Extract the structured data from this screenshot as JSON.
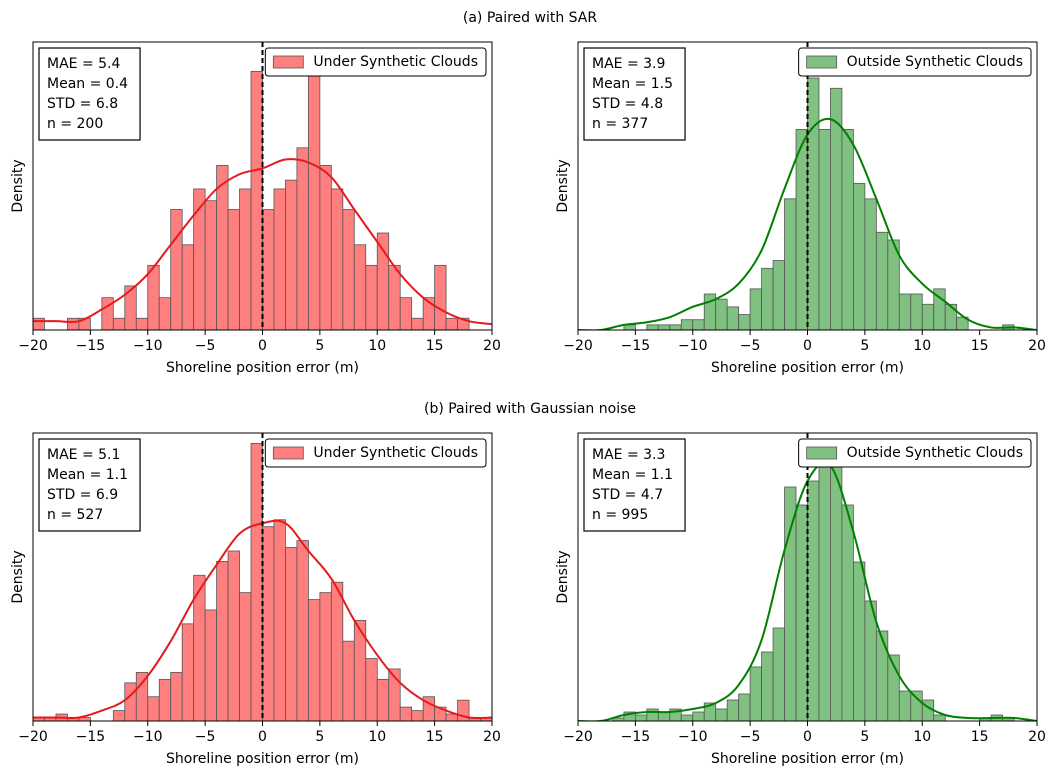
{
  "figure_titles": [
    "(a) Paired with SAR",
    "(b) Paired with Gaussian noise"
  ],
  "chart_data": [
    {
      "type": "histogram",
      "xlabel": "Shoreline position error (m)",
      "ylabel": "Density",
      "xlim": [
        -20,
        20
      ],
      "ylim": [
        0,
        0.098
      ],
      "xticks": [
        {
          "value": -20,
          "label": "−20"
        },
        {
          "value": -15,
          "label": "−15"
        },
        {
          "value": -10,
          "label": "−10"
        },
        {
          "value": -5,
          "label": "−5"
        },
        0,
        5,
        10,
        15,
        20
      ],
      "legend": "upper right",
      "vline": 0,
      "stats": [
        "MAE = 5.4",
        "Mean = 0.4",
        "STD = 6.8",
        "n = 200"
      ],
      "bins": [
        -20,
        -19,
        -18,
        -17,
        -16,
        -15,
        -14,
        -13,
        -12,
        -11,
        -10,
        -9,
        -8,
        -7,
        -6,
        -5,
        -4,
        -3,
        -2,
        -1,
        0,
        1,
        2,
        3,
        4,
        5,
        6,
        7,
        8,
        9,
        10,
        11,
        12,
        13,
        14,
        15,
        16,
        17,
        18
      ],
      "series": [
        {
          "name": "Under Synthetic Clouds",
          "color": "#ff7f7f",
          "values": [
            0.004,
            0,
            0,
            0.004,
            0.004,
            0,
            0.011,
            0.004,
            0.015,
            0.004,
            0.022,
            0.011,
            0.041,
            0.029,
            0.048,
            0.044,
            0.056,
            0.041,
            0.048,
            0.088,
            0.041,
            0.048,
            0.051,
            0.062,
            0.088,
            0.056,
            0.048,
            0.041,
            0.029,
            0.022,
            0.033,
            0.022,
            0.011,
            0.004,
            0.011,
            0.022,
            0.004,
            0.004
          ]
        }
      ],
      "kde": {
        "color": "#e41a1c",
        "x": [
          -20,
          -18,
          -16,
          -14,
          -12,
          -10,
          -8,
          -6,
          -4,
          -2,
          0,
          2,
          4,
          6,
          8,
          10,
          12,
          14,
          16,
          18,
          20
        ],
        "values": [
          0.003,
          0.003,
          0.003,
          0.007,
          0.012,
          0.019,
          0.029,
          0.039,
          0.048,
          0.053,
          0.055,
          0.058,
          0.057,
          0.052,
          0.041,
          0.03,
          0.019,
          0.011,
          0.006,
          0.003,
          0.002
        ]
      }
    },
    {
      "type": "histogram",
      "xlabel": "Shoreline position error (m)",
      "ylabel": "Density",
      "xlim": [
        -20,
        20
      ],
      "ylim": [
        0,
        0.112
      ],
      "xticks": [
        {
          "value": -20,
          "label": "−20"
        },
        {
          "value": -15,
          "label": "−15"
        },
        {
          "value": -10,
          "label": "−10"
        },
        {
          "value": -5,
          "label": "−5"
        },
        0,
        5,
        10,
        15,
        20
      ],
      "legend": "upper right",
      "vline": 0,
      "stats": [
        "MAE = 3.9",
        "Mean = 1.5",
        "STD = 4.8",
        "n = 377"
      ],
      "bins": [
        -16,
        -15,
        -14,
        -13,
        -12,
        -11,
        -10,
        -9,
        -8,
        -7,
        -6,
        -5,
        -4,
        -3,
        -2,
        -1,
        0,
        1,
        2,
        3,
        4,
        5,
        6,
        7,
        8,
        9,
        10,
        11,
        12,
        13,
        14,
        15,
        16,
        17,
        18
      ],
      "series": [
        {
          "name": "Outside Synthetic Clouds",
          "color": "#80c080",
          "values": [
            0.002,
            0,
            0.002,
            0.002,
            0.002,
            0.004,
            0.004,
            0.014,
            0.012,
            0.009,
            0.006,
            0.016,
            0.024,
            0.027,
            0.051,
            0.078,
            0.098,
            0.078,
            0.094,
            0.078,
            0.057,
            0.051,
            0.038,
            0.035,
            0.014,
            0.014,
            0.01,
            0.016,
            0.01,
            0.005,
            0,
            0,
            0,
            0.002
          ]
        }
      ],
      "kde": {
        "color": "#008000",
        "x": [
          -20,
          -18,
          -16,
          -14,
          -12,
          -10,
          -8,
          -6,
          -4,
          -2,
          0,
          2,
          4,
          6,
          8,
          10,
          12,
          14,
          16,
          18,
          20
        ],
        "values": [
          0,
          0,
          0.002,
          0.003,
          0.005,
          0.009,
          0.012,
          0.018,
          0.031,
          0.055,
          0.076,
          0.082,
          0.072,
          0.051,
          0.029,
          0.018,
          0.011,
          0.004,
          0.001,
          0.001,
          0
        ]
      }
    },
    {
      "type": "histogram",
      "xlabel": "Shoreline position error (m)",
      "ylabel": "Density",
      "xlim": [
        -20,
        20
      ],
      "ylim": [
        0,
        0.083
      ],
      "xticks": [
        {
          "value": -20,
          "label": "−20"
        },
        {
          "value": -15,
          "label": "−15"
        },
        {
          "value": -10,
          "label": "−10"
        },
        {
          "value": -5,
          "label": "−5"
        },
        0,
        5,
        10,
        15,
        20
      ],
      "legend": "upper right",
      "vline": 0,
      "stats": [
        "MAE = 5.1",
        "Mean = 1.1",
        "STD = 6.9",
        "n = 527"
      ],
      "bins": [
        -20,
        -19,
        -18,
        -17,
        -16,
        -15,
        -14,
        -13,
        -12,
        -11,
        -10,
        -9,
        -8,
        -7,
        -6,
        -5,
        -4,
        -3,
        -2,
        -1,
        0,
        1,
        2,
        3,
        4,
        5,
        6,
        7,
        8,
        9,
        10,
        11,
        12,
        13,
        14,
        15,
        16,
        17,
        18,
        19,
        20
      ],
      "series": [
        {
          "name": "Under Synthetic Clouds",
          "color": "#ff7f7f",
          "values": [
            0.001,
            0.001,
            0.002,
            0.001,
            0.001,
            0,
            0,
            0.003,
            0.011,
            0.014,
            0.007,
            0.012,
            0.014,
            0.028,
            0.042,
            0.032,
            0.046,
            0.049,
            0.037,
            0.08,
            0.056,
            0.058,
            0.05,
            0.052,
            0.035,
            0.037,
            0.04,
            0.023,
            0.029,
            0.018,
            0.012,
            0.015,
            0.004,
            0.003,
            0.007,
            0.004,
            0.002,
            0.006,
            0.001,
            0.001
          ]
        }
      ],
      "kde": {
        "color": "#e41a1c",
        "x": [
          -20,
          -18,
          -16,
          -14,
          -12,
          -10,
          -8,
          -6,
          -4,
          -2,
          0,
          2,
          4,
          6,
          8,
          10,
          12,
          14,
          16,
          18,
          20
        ],
        "values": [
          0.001,
          0.001,
          0.001,
          0.003,
          0.006,
          0.013,
          0.023,
          0.035,
          0.045,
          0.054,
          0.057,
          0.057,
          0.049,
          0.041,
          0.029,
          0.019,
          0.011,
          0.006,
          0.003,
          0.001,
          0.001
        ]
      }
    },
    {
      "type": "histogram",
      "xlabel": "Shoreline position error (m)",
      "ylabel": "Density",
      "xlim": [
        -20,
        20
      ],
      "ylim": [
        0,
        0.096
      ],
      "xticks": [
        {
          "value": -20,
          "label": "−20"
        },
        {
          "value": -15,
          "label": "−15"
        },
        {
          "value": -10,
          "label": "−10"
        },
        {
          "value": -5,
          "label": "−5"
        },
        0,
        5,
        10,
        15,
        20
      ],
      "legend": "upper right",
      "vline": 0,
      "stats": [
        "MAE = 3.3",
        "Mean = 1.1",
        "STD = 4.7",
        "n = 995"
      ],
      "bins": [
        -17,
        -16,
        -15,
        -14,
        -13,
        -12,
        -11,
        -10,
        -9,
        -8,
        -7,
        -6,
        -5,
        -4,
        -3,
        -2,
        -1,
        0,
        1,
        2,
        3,
        4,
        5,
        6,
        7,
        8,
        9,
        10,
        11,
        12,
        13,
        14,
        15,
        16,
        17,
        18
      ],
      "series": [
        {
          "name": "Outside Synthetic Clouds",
          "color": "#80c080",
          "values": [
            0.001,
            0.003,
            0.002,
            0.004,
            0.003,
            0.004,
            0.002,
            0.003,
            0.006,
            0.004,
            0.007,
            0.009,
            0.018,
            0.023,
            0.031,
            0.078,
            0.072,
            0.08,
            0.085,
            0.094,
            0.072,
            0.053,
            0.04,
            0.03,
            0.022,
            0.01,
            0.01,
            0.007,
            0.002,
            0,
            0,
            0,
            0.001,
            0.002,
            0.001
          ]
        }
      ],
      "kde": {
        "color": "#008000",
        "x": [
          -20,
          -18,
          -16,
          -14,
          -12,
          -10,
          -8,
          -6,
          -4,
          -2,
          0,
          2,
          4,
          6,
          8,
          10,
          12,
          14,
          16,
          18,
          20
        ],
        "values": [
          0,
          0,
          0.002,
          0.003,
          0.003,
          0.004,
          0.006,
          0.012,
          0.027,
          0.057,
          0.08,
          0.085,
          0.063,
          0.033,
          0.015,
          0.006,
          0.002,
          0.001,
          0.001,
          0.001,
          0
        ]
      }
    }
  ]
}
